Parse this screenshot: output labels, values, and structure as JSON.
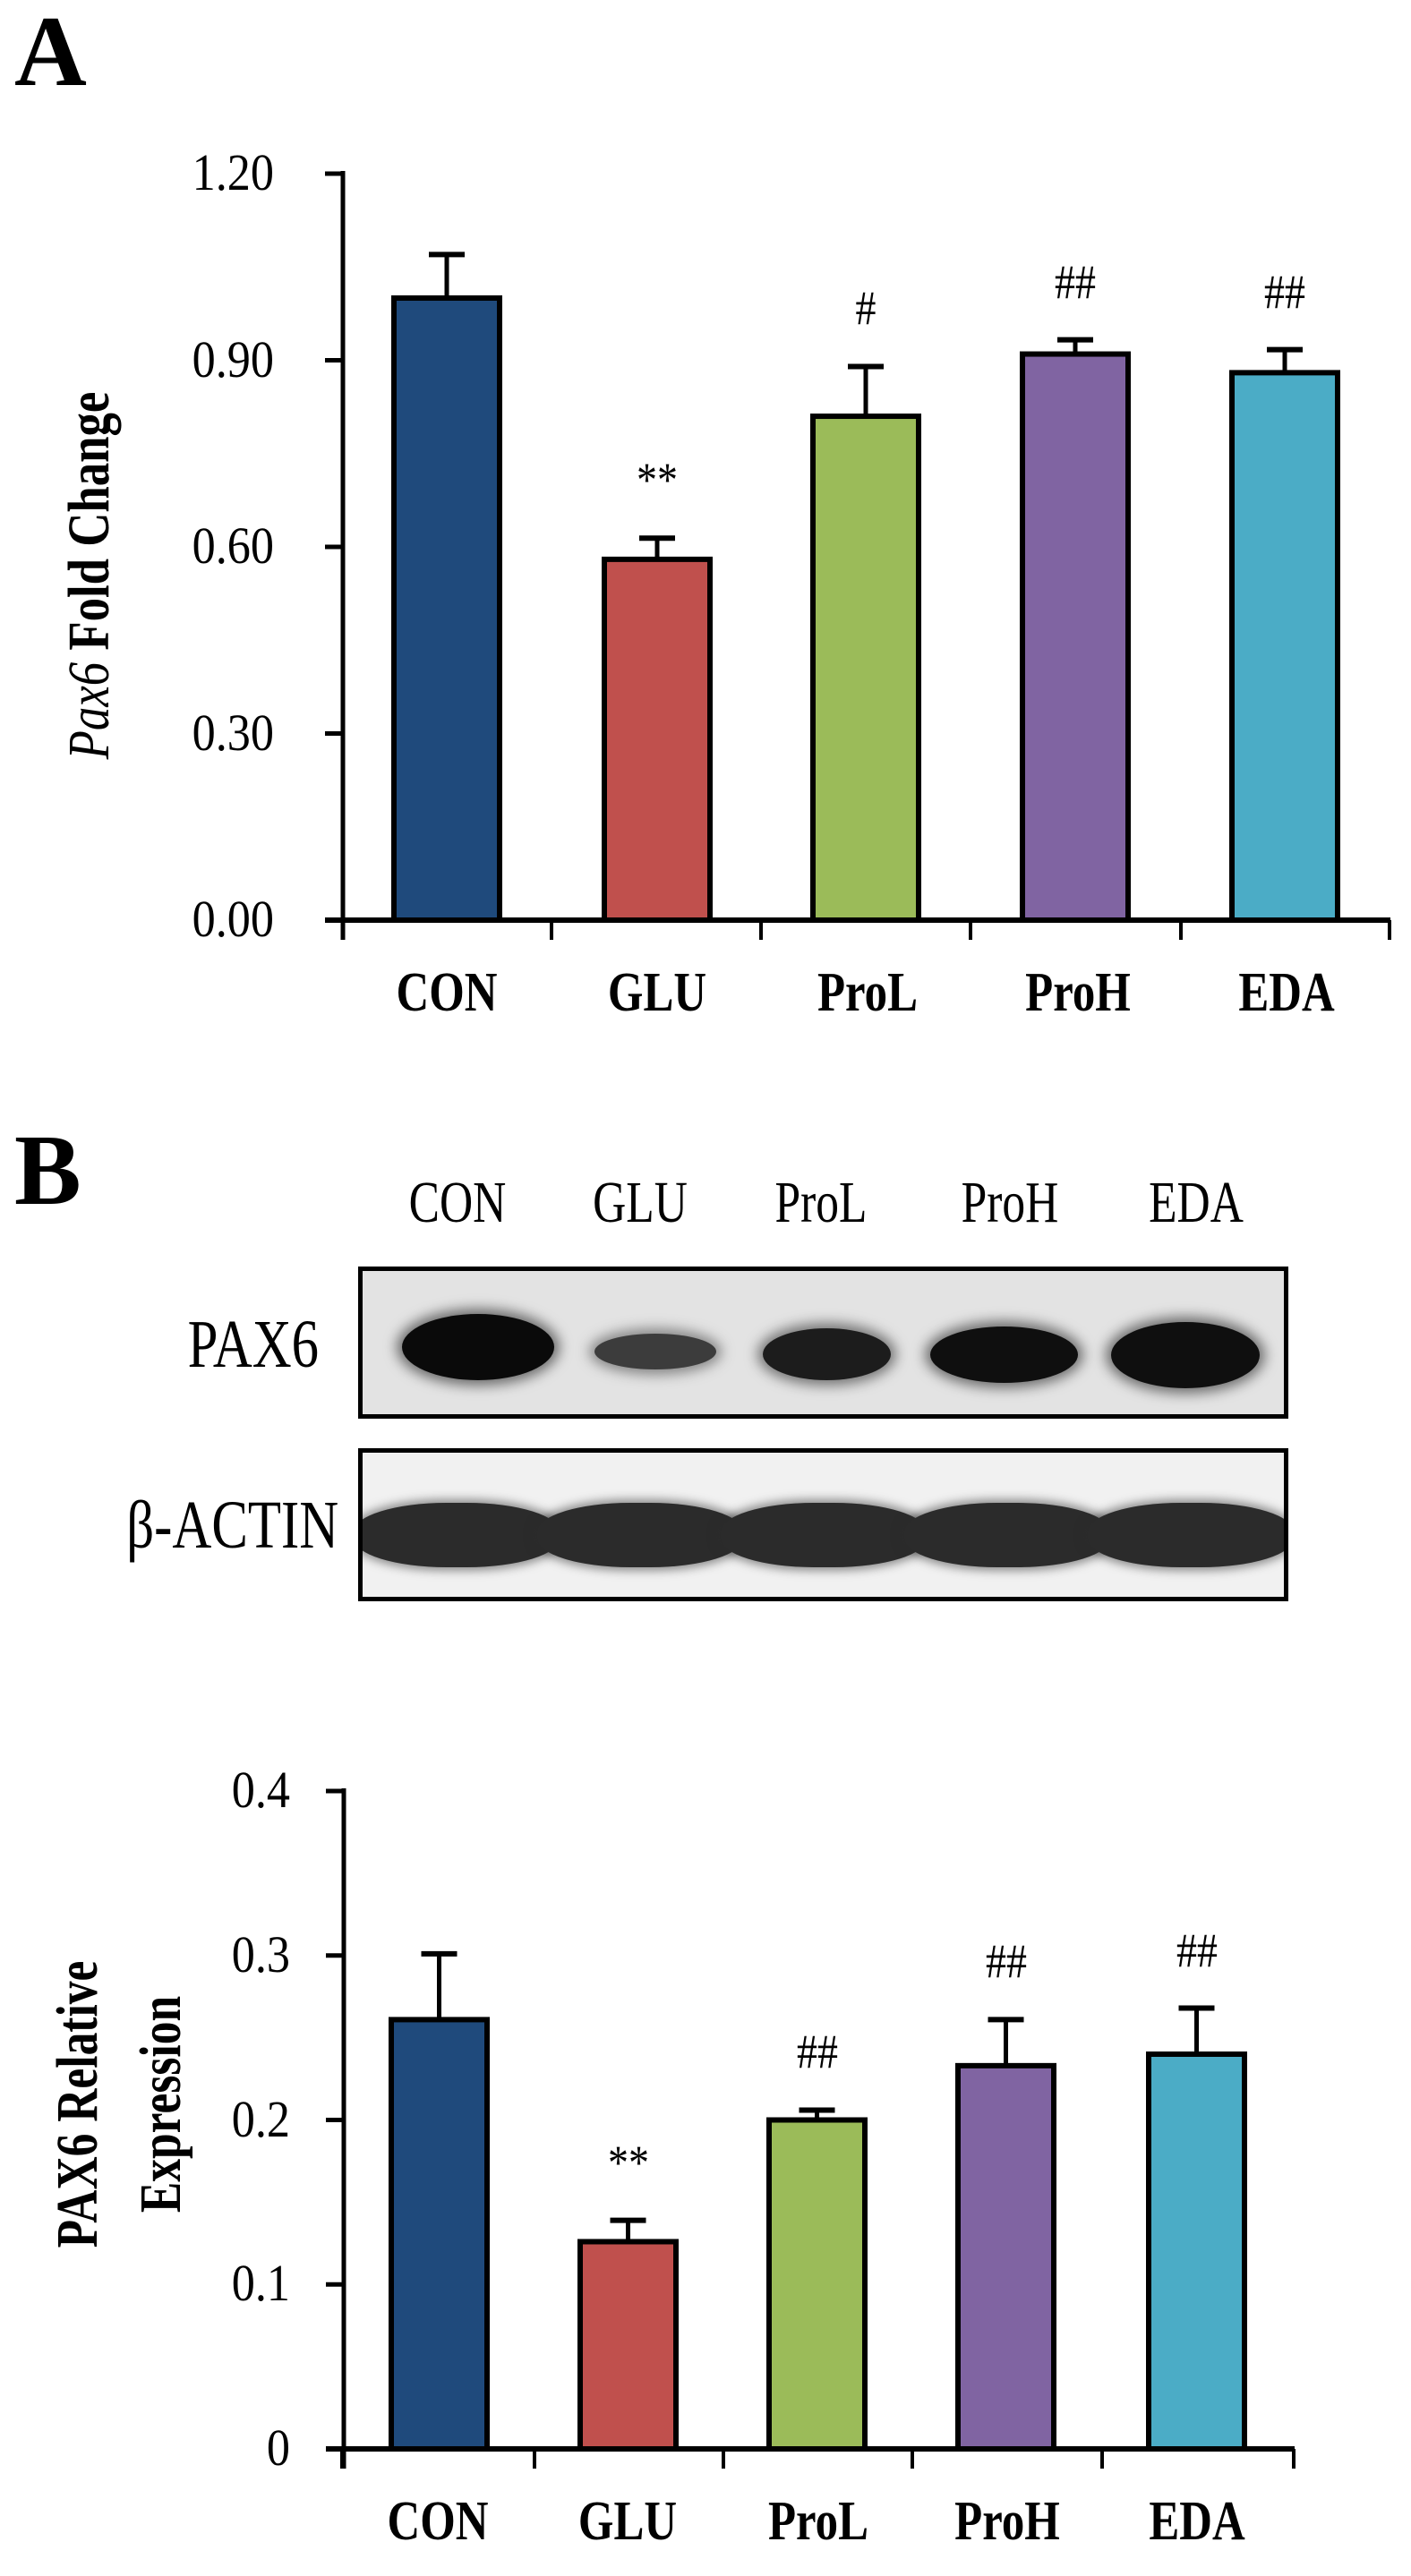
{
  "panels": {
    "a_label": "A",
    "b_label": "B"
  },
  "colors": {
    "CON": "#1f4a7c",
    "GLU": "#c0504d",
    "ProL": "#9bbb59",
    "ProH": "#8064a2",
    "EDA": "#4bacc6",
    "axis": "#000000",
    "blot_bg_top": "#e3e3e3",
    "blot_bg_bottom": "#f1f1f1"
  },
  "chart_data": [
    {
      "id": "panelA",
      "type": "bar",
      "title": "",
      "xlabel": "",
      "ylabel_italic": "Pax6",
      "ylabel_rest": " Fold Change",
      "ylabel": "Pax6 Fold Change",
      "categories": [
        "CON",
        "GLU",
        "ProL",
        "ProH",
        "EDA"
      ],
      "values": [
        1.0,
        0.58,
        0.81,
        0.91,
        0.88
      ],
      "error_upper": [
        0.07,
        0.034,
        0.08,
        0.023,
        0.037
      ],
      "significance": [
        "",
        "**",
        "#",
        "##",
        "##"
      ],
      "yticks": [
        "0.00",
        "0.30",
        "0.60",
        "0.90",
        "1.20"
      ],
      "ylim": [
        0,
        1.2
      ],
      "grid": false,
      "legend": null
    },
    {
      "id": "panelB",
      "type": "bar",
      "title": "",
      "xlabel": "",
      "ylabel_line1": "PAX6 Relative",
      "ylabel_line2": "Expression",
      "ylabel": "PAX6 Relative Expression",
      "categories": [
        "CON",
        "GLU",
        "ProL",
        "ProH",
        "EDA"
      ],
      "values": [
        0.261,
        0.126,
        0.2,
        0.233,
        0.24
      ],
      "error_upper": [
        0.04,
        0.013,
        0.006,
        0.028,
        0.028
      ],
      "significance": [
        "",
        "**",
        "##",
        "##",
        "##"
      ],
      "yticks": [
        "0",
        "0.1",
        "0.2",
        "0.3",
        "0.4"
      ],
      "ylim": [
        0,
        0.4
      ],
      "grid": false,
      "legend": null
    }
  ],
  "western_blot": {
    "lanes": [
      "CON",
      "GLU",
      "ProL",
      "ProH",
      "EDA"
    ],
    "rows": [
      {
        "label": "PAX6",
        "band_intensity": [
          1.0,
          0.45,
          0.8,
          0.95,
          0.95
        ]
      },
      {
        "label": "β-ACTIN",
        "band_intensity": [
          0.9,
          0.9,
          0.9,
          0.9,
          0.9
        ]
      }
    ]
  }
}
